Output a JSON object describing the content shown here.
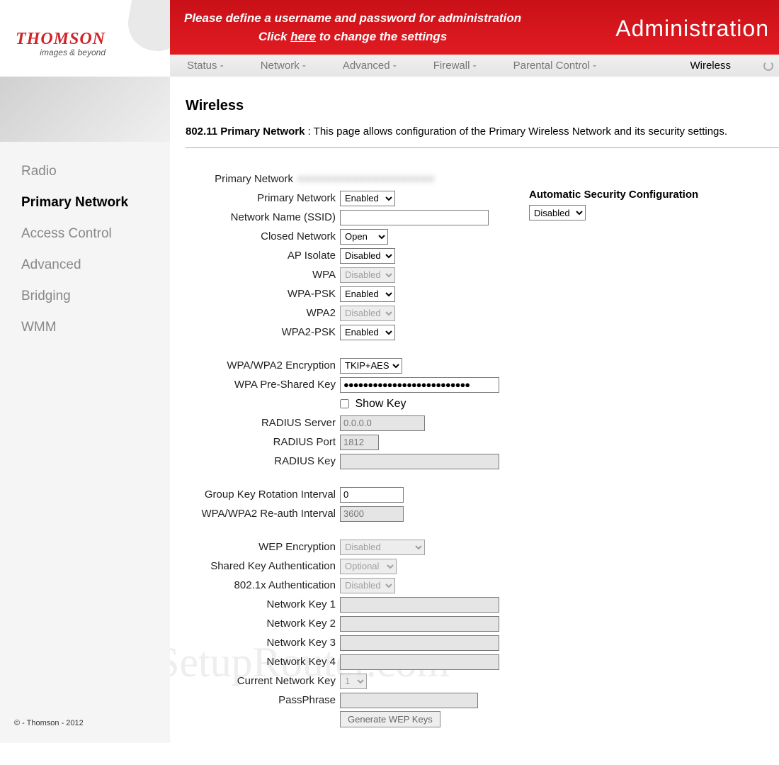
{
  "brand": {
    "name": "THOMSON",
    "tagline": "images & beyond"
  },
  "banner": {
    "line1": "Please define a username and password for administration",
    "line2_pre": "Click ",
    "line2_link": "here",
    "line2_post": " to change the settings",
    "title": "Administration"
  },
  "topnav": {
    "items": [
      "Status -",
      "Network -",
      "Advanced -",
      "Firewall -",
      "Parental Control -"
    ],
    "active": "Wireless"
  },
  "sidenav": {
    "items": [
      "Radio",
      "Primary Network",
      "Access Control",
      "Advanced",
      "Bridging",
      "WMM"
    ],
    "active_index": 1
  },
  "copyright": "© - Thomson - 2012",
  "page": {
    "heading": "Wireless",
    "sub_b": "802.11 Primary Network",
    "sub_rest": "  :  This page allows configuration of the Primary Wireless Network and its security settings."
  },
  "right": {
    "heading": "Automatic Security Configuration",
    "value": "Disabled"
  },
  "labels": {
    "primary_network_hdr": "Primary Network",
    "primary_network": "Primary Network",
    "ssid": "Network Name (SSID)",
    "closed": "Closed Network",
    "ap_isolate": "AP Isolate",
    "wpa": "WPA",
    "wpa_psk": "WPA-PSK",
    "wpa2": "WPA2",
    "wpa2_psk": "WPA2-PSK",
    "encryption": "WPA/WPA2 Encryption",
    "psk": "WPA Pre-Shared Key",
    "show_key": "Show Key",
    "radius_server": "RADIUS Server",
    "radius_port": "RADIUS Port",
    "radius_key": "RADIUS Key",
    "group_key": "Group Key Rotation Interval",
    "reauth": "WPA/WPA2 Re-auth Interval",
    "wep": "WEP Encryption",
    "shared_auth": "Shared Key Authentication",
    "dot1x": "802.1x Authentication",
    "nk1": "Network Key 1",
    "nk2": "Network Key 2",
    "nk3": "Network Key 3",
    "nk4": "Network Key 4",
    "curkey": "Current Network Key",
    "passphrase": "PassPhrase",
    "gen": "Generate WEP Keys"
  },
  "values": {
    "primary_network": "Enabled",
    "ssid": "",
    "closed": "Open",
    "ap_isolate": "Disabled",
    "wpa": "Disabled",
    "wpa_psk": "Enabled",
    "wpa2": "Disabled",
    "wpa2_psk": "Enabled",
    "encryption": "TKIP+AES",
    "psk": "●●●●●●●●●●●●●●●●●●●●●●●●●●",
    "show_key": false,
    "radius_server": "0.0.0.0",
    "radius_port": "1812",
    "radius_key": "",
    "group_key": "0",
    "reauth": "3600",
    "wep": "Disabled",
    "shared_auth": "Optional",
    "dot1x": "Disabled",
    "nk1": "",
    "nk2": "",
    "nk3": "",
    "nk4": "",
    "curkey": "1",
    "passphrase": ""
  },
  "watermark": "SetupRouter.com"
}
